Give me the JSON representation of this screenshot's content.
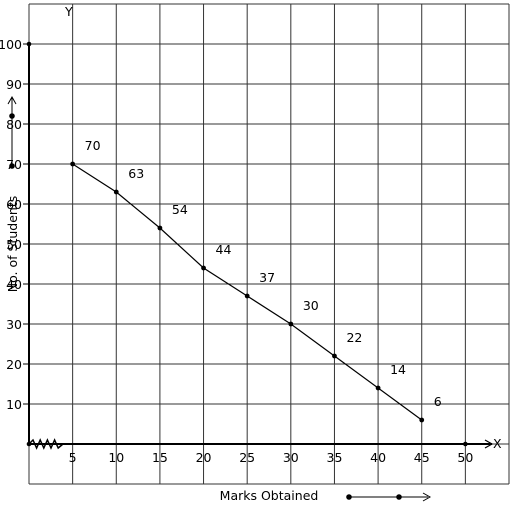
{
  "chart_data": {
    "type": "line",
    "xlabel": "Marks Obtained",
    "ylabel": "No. of Students",
    "x_axis_letter": "X",
    "y_axis_letter": "Y",
    "xlim": [
      0,
      55
    ],
    "ylim": [
      -10,
      110
    ],
    "grid": true,
    "x_ticks": [
      {
        "value": 5,
        "label": "5"
      },
      {
        "value": 10,
        "label": "10"
      },
      {
        "value": 15,
        "label": "15"
      },
      {
        "value": 20,
        "label": "20"
      },
      {
        "value": 25,
        "label": "25"
      },
      {
        "value": 30,
        "label": "30"
      },
      {
        "value": 35,
        "label": "35"
      },
      {
        "value": 40,
        "label": "40"
      },
      {
        "value": 45,
        "label": "45"
      },
      {
        "value": 50,
        "label": "50"
      }
    ],
    "y_ticks": [
      {
        "value": 10,
        "label": "10"
      },
      {
        "value": 20,
        "label": "20"
      },
      {
        "value": 30,
        "label": "30"
      },
      {
        "value": 40,
        "label": "40"
      },
      {
        "value": 50,
        "label": "50"
      },
      {
        "value": 60,
        "label": "60"
      },
      {
        "value": 70,
        "label": "70"
      },
      {
        "value": 80,
        "label": "80"
      },
      {
        "value": 90,
        "label": "90"
      },
      {
        "value": 100,
        "label": "100"
      }
    ],
    "series": [
      {
        "x": [
          5,
          10,
          15,
          20,
          25,
          30,
          35,
          40,
          45
        ],
        "y": [
          70,
          63,
          54,
          44,
          37,
          30,
          22,
          14,
          6
        ],
        "labels": [
          "70",
          "63",
          "54",
          "44",
          "37",
          "30",
          "22",
          "14",
          "6"
        ]
      }
    ],
    "color": "#000000"
  }
}
